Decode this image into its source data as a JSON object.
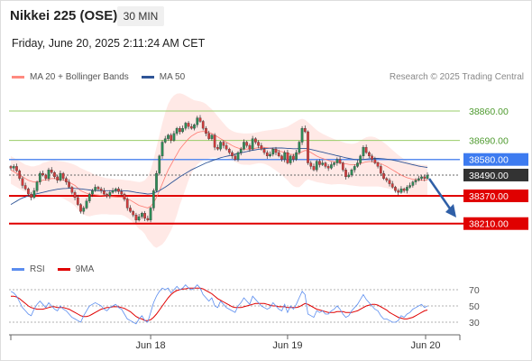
{
  "header": {
    "title": "Nikkei 225 (OSE)",
    "timeframe": "30 MIN",
    "datetime": "Friday, June 20, 2025 2:11:24 AM CET",
    "credit": "Research © 2025 Trading Central"
  },
  "colors": {
    "bollinger": "#ff8a80",
    "ma50": "#2f5597",
    "resistance": "#9acd68",
    "pivot": "#5b8def",
    "support": "#e00000",
    "current": "#333333",
    "rsi": "#5b8def",
    "rsi_ma": "#e00000",
    "candle_up": "#2e8b57",
    "candle_down": "#d23c3c"
  },
  "chart_data": [
    {
      "type": "candlestick",
      "title": "",
      "legend": [
        {
          "name": "MA 20 + Bollinger Bands",
          "color": "#ff8a80"
        },
        {
          "name": "MA 50",
          "color": "#2f5597"
        }
      ],
      "x_ticks": [
        "Jun 18",
        "Jun 19",
        "Jun 20"
      ],
      "ylim": [
        38120,
        38990
      ],
      "levels": [
        {
          "label": "38860.00",
          "value": 38860,
          "kind": "resistance"
        },
        {
          "label": "38690.00",
          "value": 38690,
          "kind": "resistance"
        },
        {
          "label": "38580.00",
          "value": 38580,
          "kind": "pivot"
        },
        {
          "label": "38490.00",
          "value": 38490,
          "kind": "current"
        },
        {
          "label": "38370.00",
          "value": 38370,
          "kind": "support"
        },
        {
          "label": "38210.00",
          "value": 38210,
          "kind": "support"
        }
      ],
      "closes": [
        38530,
        38540,
        38515,
        38470,
        38430,
        38410,
        38380,
        38360,
        38400,
        38450,
        38500,
        38490,
        38470,
        38520,
        38505,
        38480,
        38460,
        38500,
        38470,
        38450,
        38420,
        38390,
        38360,
        38320,
        38280,
        38300,
        38340,
        38380,
        38400,
        38420,
        38410,
        38400,
        38380,
        38370,
        38390,
        38400,
        38410,
        38395,
        38380,
        38350,
        38300,
        38280,
        38260,
        38230,
        38250,
        38270,
        38240,
        38230,
        38300,
        38400,
        38500,
        38600,
        38680,
        38700,
        38720,
        38690,
        38730,
        38760,
        38740,
        38760,
        38790,
        38770,
        38760,
        38780,
        38820,
        38800,
        38760,
        38730,
        38700,
        38720,
        38650,
        38640,
        38680,
        38660,
        38640,
        38620,
        38600,
        38580,
        38620,
        38640,
        38680,
        38660,
        38640,
        38700,
        38680,
        38660,
        38640,
        38620,
        38600,
        38610,
        38640,
        38620,
        38600,
        38580,
        38620,
        38560,
        38600,
        38580,
        38620,
        38680,
        38760,
        38740,
        38560,
        38540,
        38520,
        38570,
        38550,
        38560,
        38540,
        38530,
        38550,
        38560,
        38580,
        38560,
        38520,
        38480,
        38490,
        38520,
        38540,
        38560,
        38600,
        38650,
        38620,
        38600,
        38580,
        38560,
        38540,
        38500,
        38470,
        38460,
        38440,
        38420,
        38400,
        38390,
        38410,
        38400,
        38420,
        38430,
        38450,
        38460,
        38470,
        38480,
        38470,
        38490
      ],
      "bollinger": {
        "mid": [
          38520,
          38510,
          38500,
          38490,
          38480,
          38470,
          38460,
          38455,
          38450,
          38450,
          38455,
          38460,
          38462,
          38465,
          38470,
          38470,
          38468,
          38465,
          38462,
          38455,
          38448,
          38440,
          38430,
          38415,
          38400,
          38392,
          38385,
          38380,
          38378,
          38376,
          38374,
          38372,
          38370,
          38368,
          38366,
          38365,
          38364,
          38363,
          38362,
          38358,
          38352,
          38345,
          38335,
          38325,
          38315,
          38310,
          38305,
          38300,
          38310,
          38330,
          38360,
          38400,
          38440,
          38480,
          38520,
          38550,
          38580,
          38610,
          38640,
          38660,
          38680,
          38700,
          38715,
          38725,
          38735,
          38740,
          38742,
          38740,
          38735,
          38730,
          38720,
          38710,
          38700,
          38690,
          38680,
          38670,
          38660,
          38652,
          38646,
          38642,
          38640,
          38640,
          38640,
          38642,
          38645,
          38648,
          38650,
          38650,
          38648,
          38645,
          38640,
          38635,
          38630,
          38625,
          38620,
          38615,
          38610,
          38608,
          38610,
          38615,
          38625,
          38632,
          38630,
          38620,
          38610,
          38600,
          38592,
          38586,
          38580,
          38575,
          38570,
          38567,
          38565,
          38562,
          38558,
          38555,
          38552,
          38550,
          38550,
          38552,
          38556,
          38562,
          38566,
          38568,
          38568,
          38566,
          38562,
          38556,
          38548,
          38540,
          38530,
          38520,
          38510,
          38500,
          38490,
          38482,
          38475,
          38470,
          38466,
          38463,
          38461,
          38460,
          38460,
          38462
        ],
        "upper": [
          38600,
          38590,
          38580,
          38570,
          38560,
          38550,
          38545,
          38540,
          38540,
          38545,
          38550,
          38560,
          38565,
          38570,
          38575,
          38575,
          38572,
          38570,
          38568,
          38565,
          38560,
          38555,
          38548,
          38540,
          38530,
          38522,
          38515,
          38508,
          38500,
          38492,
          38486,
          38480,
          38476,
          38472,
          38470,
          38468,
          38466,
          38465,
          38464,
          38462,
          38460,
          38458,
          38455,
          38452,
          38450,
          38452,
          38460,
          38480,
          38520,
          38580,
          38650,
          38720,
          38790,
          38850,
          38900,
          38930,
          38950,
          38960,
          38962,
          38958,
          38950,
          38940,
          38930,
          38922,
          38918,
          38915,
          38910,
          38900,
          38885,
          38870,
          38850,
          38830,
          38810,
          38790,
          38770,
          38755,
          38745,
          38738,
          38734,
          38732,
          38730,
          38730,
          38731,
          38732,
          38735,
          38738,
          38742,
          38745,
          38748,
          38750,
          38752,
          38754,
          38756,
          38760,
          38765,
          38770,
          38780,
          38790,
          38800,
          38810,
          38815,
          38810,
          38795,
          38780,
          38765,
          38750,
          38738,
          38728,
          38720,
          38712,
          38705,
          38698,
          38692,
          38686,
          38680,
          38675,
          38672,
          38670,
          38672,
          38678,
          38688,
          38700,
          38708,
          38712,
          38712,
          38708,
          38700,
          38690,
          38678,
          38665,
          38650,
          38635,
          38620,
          38606,
          38594,
          38582,
          38572,
          38565,
          38560,
          38556,
          38553,
          38550,
          38548,
          38548
        ],
        "lower": [
          38440,
          38430,
          38420,
          38410,
          38400,
          38392,
          38380,
          38370,
          38360,
          38355,
          38360,
          38362,
          38360,
          38360,
          38365,
          38365,
          38364,
          38360,
          38356,
          38345,
          38336,
          38325,
          38312,
          38290,
          38270,
          38262,
          38255,
          38252,
          38256,
          38260,
          38262,
          38264,
          38264,
          38264,
          38262,
          38262,
          38262,
          38261,
          38260,
          38254,
          38244,
          38232,
          38215,
          38198,
          38180,
          38168,
          38150,
          38120,
          38100,
          38080,
          38070,
          38080,
          38090,
          38110,
          38140,
          38170,
          38210,
          38260,
          38318,
          38362,
          38410,
          38460,
          38500,
          38528,
          38552,
          38565,
          38574,
          38580,
          38585,
          38590,
          38590,
          38590,
          38590,
          38590,
          38590,
          38585,
          38575,
          38566,
          38558,
          38552,
          38550,
          38550,
          38549,
          38552,
          38555,
          38558,
          38558,
          38555,
          38548,
          38540,
          38528,
          38516,
          38504,
          38490,
          38475,
          38460,
          38440,
          38426,
          38420,
          38420,
          38435,
          38454,
          38465,
          38460,
          38455,
          38450,
          38446,
          38444,
          38440,
          38438,
          38435,
          38436,
          38438,
          38438,
          38436,
          38435,
          38432,
          38430,
          38428,
          38426,
          38424,
          38424,
          38424,
          38424,
          38424,
          38424,
          38424,
          38422,
          38418,
          38415,
          38410,
          38405,
          38400,
          38394,
          38386,
          38382,
          38378,
          38375,
          38372,
          38370,
          38369,
          38370,
          38372,
          38376
        ]
      },
      "ma50": [
        38320,
        38330,
        38340,
        38350,
        38358,
        38364,
        38370,
        38374,
        38378,
        38382,
        38386,
        38390,
        38394,
        38398,
        38402,
        38405,
        38408,
        38410,
        38412,
        38413,
        38414,
        38414,
        38413,
        38412,
        38410,
        38408,
        38406,
        38404,
        38402,
        38401,
        38400,
        38400,
        38400,
        38400,
        38400,
        38400,
        38400,
        38400,
        38400,
        38399,
        38398,
        38396,
        38393,
        38390,
        38387,
        38385,
        38383,
        38380,
        38382,
        38386,
        38392,
        38400,
        38410,
        38420,
        38432,
        38444,
        38456,
        38468,
        38480,
        38490,
        38500,
        38510,
        38520,
        38528,
        38536,
        38544,
        38552,
        38560,
        38566,
        38572,
        38578,
        38584,
        38590,
        38594,
        38598,
        38602,
        38606,
        38610,
        38614,
        38618,
        38622,
        38626,
        38630,
        38633,
        38636,
        38639,
        38641,
        38643,
        38644,
        38645,
        38646,
        38646,
        38646,
        38646,
        38645,
        38644,
        38643,
        38642,
        38642,
        38643,
        38644,
        38644,
        38642,
        38638,
        38634,
        38630,
        38626,
        38622,
        38618,
        38614,
        38610,
        38606,
        38602,
        38598,
        38594,
        38590,
        38586,
        38583,
        38580,
        38578,
        38578,
        38580,
        38582,
        38584,
        38585,
        38586,
        38586,
        38585,
        38584,
        38582,
        38580,
        38577,
        38574,
        38570,
        38566,
        38562,
        38558,
        38554,
        38550,
        38546,
        38542,
        38539,
        38536,
        38534
      ]
    },
    {
      "type": "line",
      "title": "",
      "legend": [
        {
          "name": "RSI",
          "color": "#5b8def"
        },
        {
          "name": "9MA",
          "color": "#e00000"
        }
      ],
      "ylim": [
        20,
        80
      ],
      "y_ticks": [
        70,
        50,
        30
      ],
      "rsi": [
        68,
        66,
        62,
        55,
        48,
        44,
        40,
        38,
        46,
        52,
        56,
        52,
        48,
        54,
        50,
        46,
        44,
        50,
        46,
        44,
        40,
        36,
        34,
        32,
        30,
        38,
        44,
        50,
        52,
        54,
        52,
        50,
        46,
        44,
        48,
        50,
        52,
        48,
        46,
        40,
        34,
        32,
        30,
        28,
        34,
        38,
        32,
        30,
        42,
        54,
        62,
        68,
        72,
        70,
        72,
        66,
        70,
        74,
        70,
        72,
        76,
        72,
        70,
        72,
        76,
        72,
        64,
        60,
        56,
        60,
        50,
        48,
        56,
        52,
        48,
        46,
        44,
        42,
        50,
        54,
        60,
        56,
        52,
        62,
        58,
        54,
        50,
        48,
        46,
        48,
        54,
        50,
        46,
        44,
        52,
        42,
        50,
        46,
        52,
        60,
        68,
        64,
        40,
        38,
        36,
        44,
        42,
        44,
        40,
        40,
        44,
        46,
        50,
        46,
        40,
        36,
        38,
        44,
        48,
        52,
        58,
        64,
        58,
        54,
        50,
        46,
        44,
        38,
        34,
        34,
        32,
        30,
        30,
        32,
        38,
        36,
        40,
        42,
        46,
        48,
        50,
        52,
        48,
        50
      ],
      "rsi_ma": [
        62,
        62,
        61,
        59,
        56,
        53,
        50,
        48,
        47,
        46,
        46,
        46,
        47,
        48,
        49,
        49,
        48,
        48,
        48,
        47,
        46,
        44,
        42,
        40,
        38,
        37,
        37,
        38,
        40,
        42,
        44,
        46,
        47,
        48,
        48,
        49,
        49,
        49,
        48,
        47,
        45,
        43,
        40,
        37,
        35,
        34,
        32,
        32,
        33,
        36,
        40,
        45,
        50,
        55,
        60,
        64,
        67,
        69,
        70,
        71,
        71,
        72,
        72,
        72,
        72,
        72,
        71,
        69,
        67,
        65,
        62,
        59,
        57,
        55,
        53,
        51,
        49,
        48,
        48,
        48,
        49,
        50,
        51,
        52,
        53,
        53,
        53,
        53,
        52,
        51,
        50,
        50,
        49,
        49,
        49,
        48,
        48,
        48,
        48,
        49,
        51,
        53,
        52,
        50,
        48,
        46,
        45,
        44,
        43,
        42,
        42,
        42,
        43,
        43,
        43,
        42,
        42,
        42,
        43,
        44,
        46,
        48,
        50,
        51,
        52,
        52,
        51,
        49,
        47,
        45,
        42,
        40,
        38,
        36,
        35,
        34,
        34,
        35,
        36,
        38,
        40,
        42,
        44,
        45
      ]
    }
  ]
}
